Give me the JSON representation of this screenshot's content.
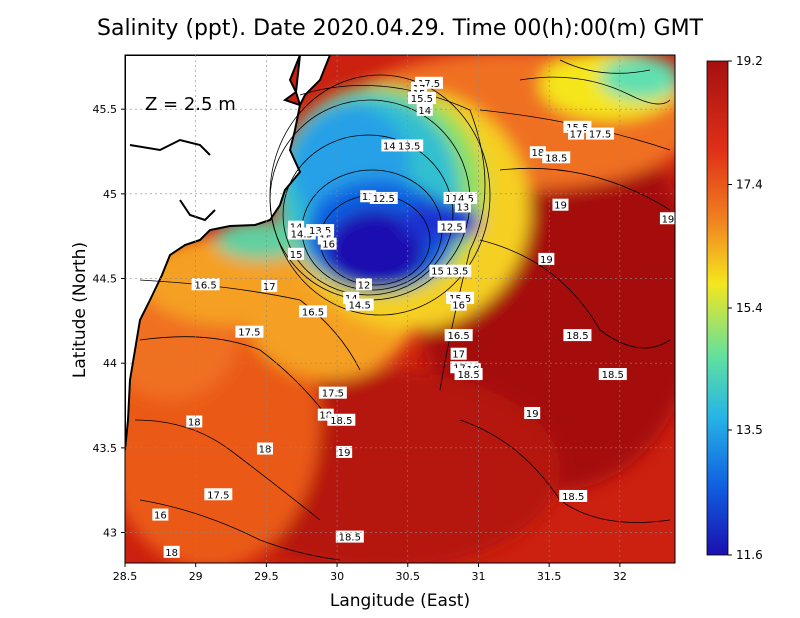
{
  "title": "Salinity (ppt). Date 2020.04.29. Time 00(h):00(m) GMT",
  "depth_label": "Z = 2.5 m",
  "xlabel": "Langitude (East)",
  "ylabel": "Latitude (North)",
  "x_ticks": [
    "28.5",
    "29",
    "29.5",
    "30",
    "30.5",
    "31",
    "31.5",
    "32"
  ],
  "y_ticks": [
    "43",
    "43.5",
    "44",
    "44.5",
    "45",
    "45.5"
  ],
  "colorbar_ticks": [
    "19.2",
    "17.4",
    "15.4",
    "13.5",
    "11.6"
  ],
  "colors": {
    "low": "#1a0fb0",
    "mid_low": "#26b4e6",
    "mid": "#f5e61e",
    "mid_high": "#f08020",
    "high": "#a51010",
    "land": "#ffffff",
    "coast": "#000000"
  },
  "contour_labels": [
    {
      "text": "17.5",
      "lon": 30.65,
      "lat": 45.65
    },
    {
      "text": "17",
      "lon": 30.58,
      "lat": 45.62
    },
    {
      "text": "15",
      "lon": 30.58,
      "lat": 45.59
    },
    {
      "text": "15.5",
      "lon": 30.6,
      "lat": 45.56
    },
    {
      "text": "14",
      "lon": 30.62,
      "lat": 45.49
    },
    {
      "text": "14",
      "lon": 30.37,
      "lat": 45.28
    },
    {
      "text": "13.5",
      "lon": 30.51,
      "lat": 45.28
    },
    {
      "text": "13",
      "lon": 30.22,
      "lat": 44.98
    },
    {
      "text": "12.5",
      "lon": 30.33,
      "lat": 44.97
    },
    {
      "text": "15",
      "lon": 30.81,
      "lat": 44.97
    },
    {
      "text": "14.5",
      "lon": 30.89,
      "lat": 44.97
    },
    {
      "text": "13",
      "lon": 30.89,
      "lat": 44.92
    },
    {
      "text": "12.5",
      "lon": 30.81,
      "lat": 44.8
    },
    {
      "text": "14",
      "lon": 29.71,
      "lat": 44.8
    },
    {
      "text": "14.5",
      "lon": 29.75,
      "lat": 44.76
    },
    {
      "text": "13.5",
      "lon": 29.88,
      "lat": 44.78
    },
    {
      "text": "15",
      "lon": 29.92,
      "lat": 44.73
    },
    {
      "text": "16",
      "lon": 29.94,
      "lat": 44.7
    },
    {
      "text": "15",
      "lon": 29.71,
      "lat": 44.64
    },
    {
      "text": "15",
      "lon": 30.71,
      "lat": 44.54
    },
    {
      "text": "13.5",
      "lon": 30.85,
      "lat": 44.54
    },
    {
      "text": "12",
      "lon": 30.19,
      "lat": 44.46
    },
    {
      "text": "16.5",
      "lon": 29.07,
      "lat": 44.46
    },
    {
      "text": "17",
      "lon": 29.52,
      "lat": 44.45
    },
    {
      "text": "15.5",
      "lon": 30.87,
      "lat": 44.38
    },
    {
      "text": "16",
      "lon": 30.86,
      "lat": 44.34
    },
    {
      "text": "14",
      "lon": 30.1,
      "lat": 44.38
    },
    {
      "text": "14.5",
      "lon": 30.16,
      "lat": 44.34
    },
    {
      "text": "16.5",
      "lon": 29.83,
      "lat": 44.3
    },
    {
      "text": "17.5",
      "lon": 29.38,
      "lat": 44.18
    },
    {
      "text": "16.5",
      "lon": 30.86,
      "lat": 44.16
    },
    {
      "text": "17",
      "lon": 30.86,
      "lat": 44.05
    },
    {
      "text": "17.5",
      "lon": 30.9,
      "lat": 43.97
    },
    {
      "text": "18",
      "lon": 30.96,
      "lat": 43.96
    },
    {
      "text": "18.5",
      "lon": 30.93,
      "lat": 43.93
    },
    {
      "text": "17.5",
      "lon": 29.97,
      "lat": 43.82
    },
    {
      "text": "18",
      "lon": 29.92,
      "lat": 43.69
    },
    {
      "text": "18.5",
      "lon": 30.03,
      "lat": 43.66
    },
    {
      "text": "18",
      "lon": 28.99,
      "lat": 43.65
    },
    {
      "text": "18",
      "lon": 29.49,
      "lat": 43.49
    },
    {
      "text": "19",
      "lon": 30.05,
      "lat": 43.47
    },
    {
      "text": "17.5",
      "lon": 29.16,
      "lat": 43.22
    },
    {
      "text": "16",
      "lon": 28.75,
      "lat": 43.1
    },
    {
      "text": "18.5",
      "lon": 30.09,
      "lat": 42.97
    },
    {
      "text": "18",
      "lon": 28.83,
      "lat": 42.88
    },
    {
      "text": "15.5",
      "lon": 31.7,
      "lat": 45.39
    },
    {
      "text": "17",
      "lon": 31.69,
      "lat": 45.35
    },
    {
      "text": "17.5",
      "lon": 31.86,
      "lat": 45.35
    },
    {
      "text": "18",
      "lon": 31.42,
      "lat": 45.24
    },
    {
      "text": "18.5",
      "lon": 31.55,
      "lat": 45.21
    },
    {
      "text": "19",
      "lon": 31.58,
      "lat": 44.93
    },
    {
      "text": "19",
      "lon": 32.34,
      "lat": 44.85
    },
    {
      "text": "19",
      "lon": 31.48,
      "lat": 44.61
    },
    {
      "text": "18.5",
      "lon": 31.7,
      "lat": 44.16
    },
    {
      "text": "18.5",
      "lon": 31.95,
      "lat": 43.93
    },
    {
      "text": "19",
      "lon": 31.38,
      "lat": 43.7
    },
    {
      "text": "18.5",
      "lon": 31.67,
      "lat": 43.21
    }
  ]
}
